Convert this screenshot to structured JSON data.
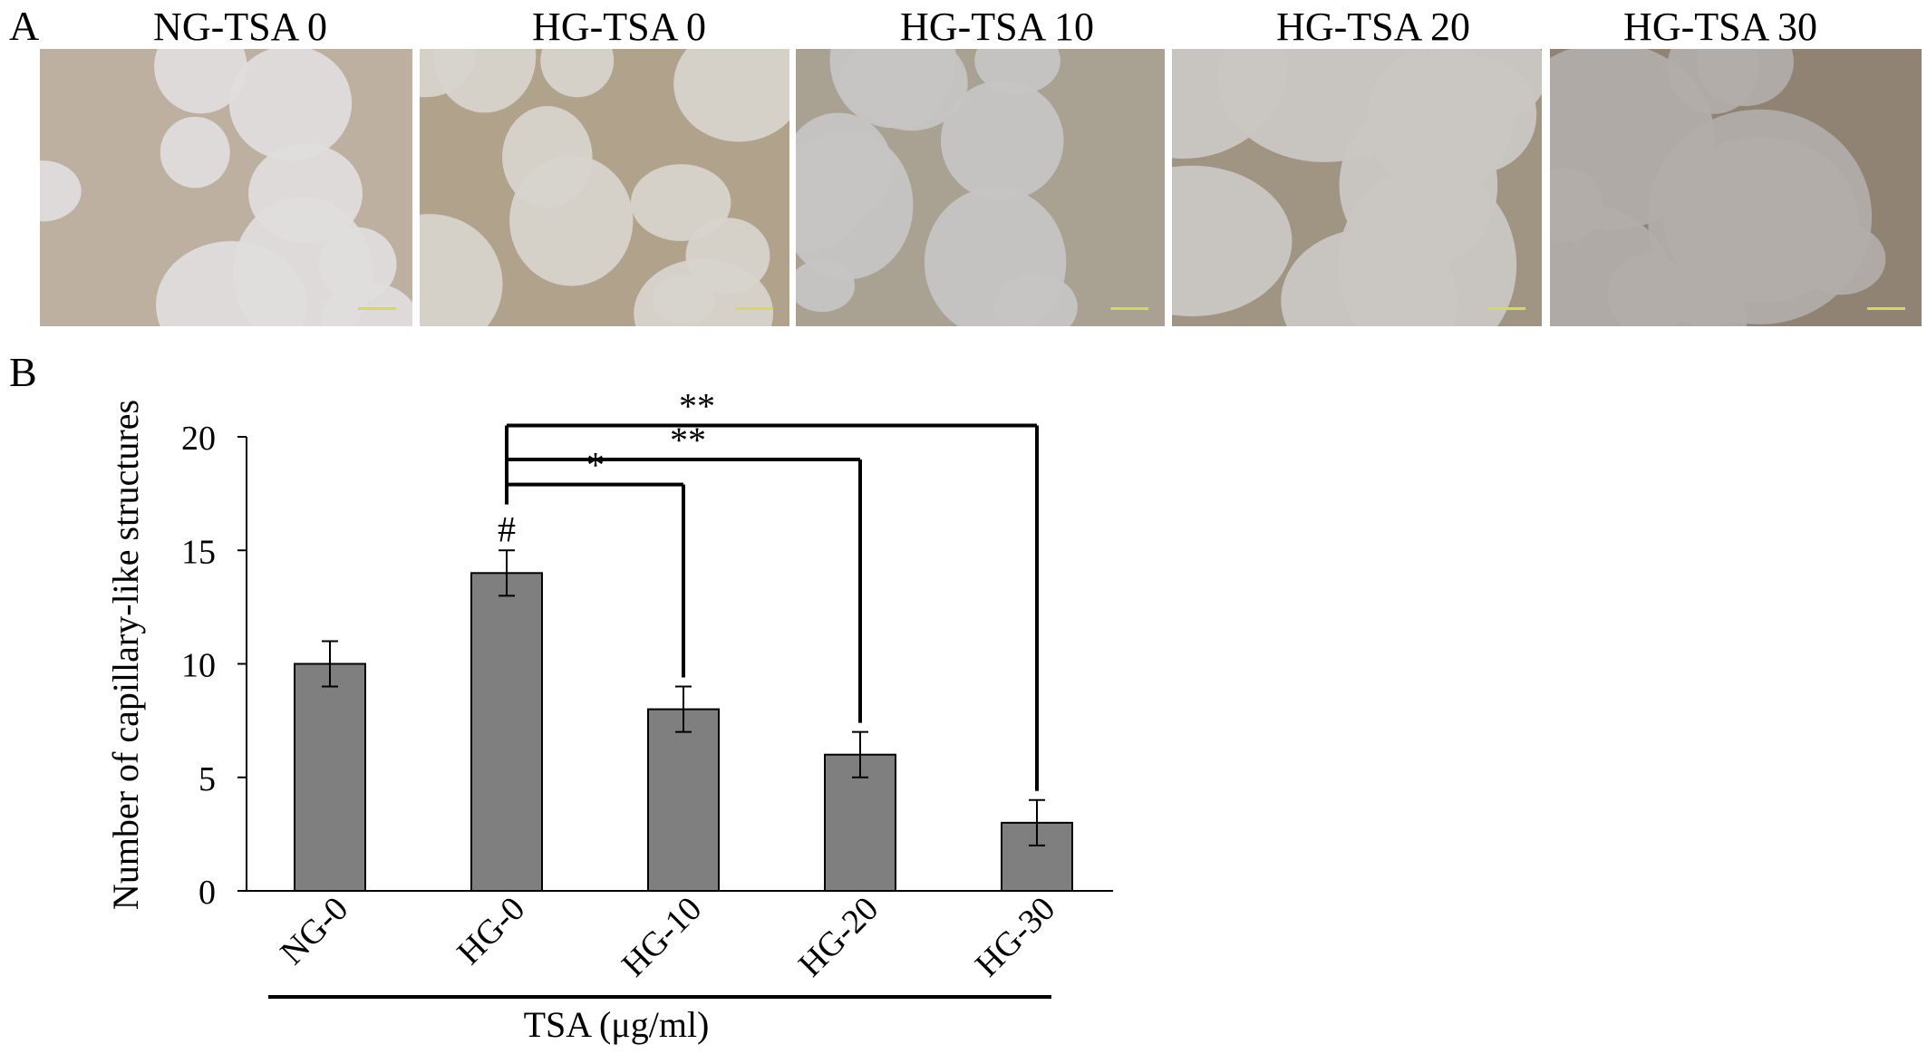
{
  "panels": {
    "a_letter": "A",
    "b_letter": "B"
  },
  "micrographs": [
    {
      "label": "NG-TSA 0",
      "tone": "#cfc7c4",
      "vessel": "#e6e4e6",
      "network": "#b7a994",
      "scalebar": "#d8d85a"
    },
    {
      "label": "HG-TSA 0",
      "tone": "#c9c2b6",
      "vessel": "#dcd9d4",
      "network": "#a8977c",
      "scalebar": "#d8d85a"
    },
    {
      "label": "HG-TSA 10",
      "tone": "#8d8f93",
      "vessel": "#dad7d4",
      "network": "#b3a893",
      "scalebar": "#d8d85a"
    },
    {
      "label": "HG-TSA 20",
      "tone": "#a9a39e",
      "vessel": "#d6d3cf",
      "network": "#9e8f78",
      "scalebar": "#d8d85a"
    },
    {
      "label": "HG-TSA 30",
      "tone": "#9c9692",
      "vessel": "#b9b4b0",
      "network": "#8c7d68",
      "scalebar": "#d8d85a"
    }
  ],
  "chart_data": {
    "type": "bar",
    "categories": [
      "NG-0",
      "HG-0",
      "HG-10",
      "HG-20",
      "HG-30"
    ],
    "values": [
      10,
      14,
      8,
      6,
      3
    ],
    "errors": [
      1,
      1,
      1,
      1,
      1
    ],
    "ylabel": "Number of capillary-like structures",
    "xlabel": "TSA (μg/ml)",
    "ylim": [
      0,
      20
    ],
    "yticks": [
      0,
      5,
      10,
      15,
      20
    ],
    "bar_color": "#7f7f7f",
    "markers": [
      {
        "category": "HG-0",
        "symbol": "#"
      }
    ],
    "comparisons": [
      {
        "from": "HG-0",
        "to": "HG-10",
        "label": "*"
      },
      {
        "from": "HG-0",
        "to": "HG-20",
        "label": "**"
      },
      {
        "from": "HG-0",
        "to": "HG-30",
        "label": "**"
      }
    ],
    "grid": false,
    "legend": "none"
  }
}
